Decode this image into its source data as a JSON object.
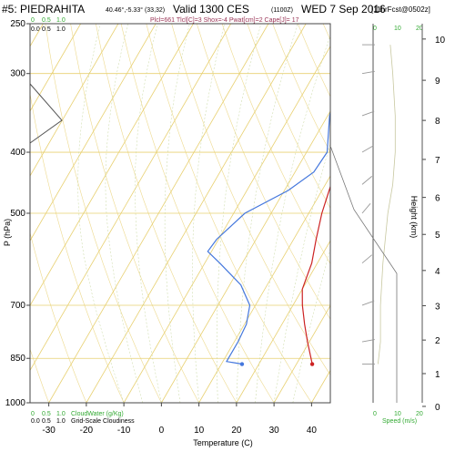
{
  "header": {
    "station": "#5: PIEDRAHITA",
    "coords": "40.46°,-5.33° (33,32)",
    "valid": "Valid 1300 CES",
    "valid_z": "(1100Z)",
    "date": "WED 7 Sep 2016",
    "fcst": "[11hrFcst@0502z]",
    "parcel_info": "Plcl=661 Tlcl[C]=3 Shox=-4 Pwat[cm]=2 Cape[J]= 17"
  },
  "colors": {
    "temperature": "#cc2222",
    "dewpoint": "#4477dd",
    "isotherm": "#e8d070",
    "wind": "#999999",
    "cloudwater_axis": "#33aa33",
    "cloud": "#555555"
  },
  "chart_data": {
    "type": "line",
    "title": "",
    "xlabel": "Temperature (C)",
    "ylabel": "P (hPa)",
    "y2label": "Height (km)",
    "log_pressure": true,
    "xlim": [
      -35,
      45
    ],
    "ylim_pressure": [
      1000,
      250
    ],
    "x_ticks": [
      -30,
      -20,
      -10,
      0,
      10,
      20,
      30,
      40
    ],
    "pressure_ticks": [
      250,
      300,
      400,
      500,
      700,
      850,
      1000
    ],
    "height_ticks_km": [
      0,
      1,
      2,
      3,
      4,
      5,
      6,
      7,
      8,
      9,
      10
    ],
    "series": [
      {
        "role": "temperature",
        "points": [
          [
            34.2,
            868
          ],
          [
            33.0,
            850
          ],
          [
            29.5,
            800
          ],
          [
            26.0,
            750
          ],
          [
            22.5,
            700
          ],
          [
            20.0,
            660
          ],
          [
            18.5,
            600
          ],
          [
            16.0,
            550
          ],
          [
            13.5,
            500
          ],
          [
            11.5,
            450
          ],
          [
            9.0,
            400
          ],
          [
            6.5,
            350
          ],
          [
            4.0,
            300
          ],
          [
            2.0,
            262
          ]
        ]
      },
      {
        "role": "dewpoint",
        "points": [
          [
            15.5,
            868
          ],
          [
            11.0,
            860
          ],
          [
            11.0,
            800
          ],
          [
            10.5,
            750
          ],
          [
            8.5,
            700
          ],
          [
            3.0,
            650
          ],
          [
            -6.0,
            600
          ],
          [
            -11.0,
            575
          ],
          [
            -10.5,
            550
          ],
          [
            -7.0,
            500
          ],
          [
            1.0,
            460
          ],
          [
            5.0,
            430
          ],
          [
            5.5,
            400
          ],
          [
            0.5,
            350
          ],
          [
            -3.5,
            300
          ],
          [
            -5.0,
            262
          ]
        ]
      }
    ],
    "surface_markers": [
      {
        "label": "temperature",
        "x": 34.2,
        "p": 868
      },
      {
        "label": "dewpoint",
        "x": 15.5,
        "p": 868
      }
    ],
    "cloudwater_axis": {
      "label": "CloudWater (g/Kg)",
      "ticks": [
        "0",
        "0.5",
        "1.0"
      ],
      "top_ticks": [
        "0",
        "0.5",
        "1.0"
      ]
    },
    "cloudiness_axis": {
      "label": "Grid-Scale Cloudiness",
      "ticks": [
        "0.0",
        "0.5",
        "1.0"
      ]
    },
    "speed_axis": {
      "label": "Speed (m/s)",
      "ticks": [
        "0",
        "10",
        "20"
      ],
      "top_ticks": [
        "0",
        "10",
        "20"
      ]
    },
    "wind_profile": [
      {
        "p": 868,
        "dir": 270,
        "spd": 2
      },
      {
        "p": 800,
        "dir": 260,
        "spd": 3
      },
      {
        "p": 700,
        "dir": 250,
        "spd": 3
      },
      {
        "p": 600,
        "dir": 230,
        "spd": 4
      },
      {
        "p": 500,
        "dir": 220,
        "spd": 6
      },
      {
        "p": 450,
        "dir": 230,
        "spd": 8
      },
      {
        "p": 400,
        "dir": 240,
        "spd": 9
      },
      {
        "p": 350,
        "dir": 250,
        "spd": 9
      },
      {
        "p": 300,
        "dir": 260,
        "spd": 8
      },
      {
        "p": 270,
        "dir": 270,
        "spd": 7
      }
    ]
  }
}
